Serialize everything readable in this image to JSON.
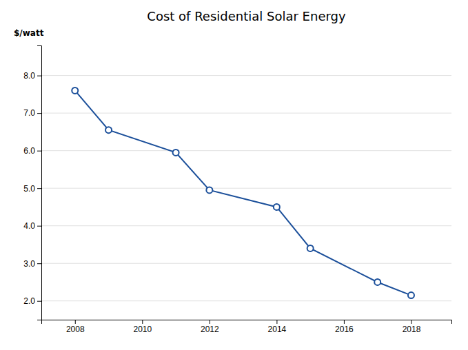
{
  "chart_data": {
    "type": "line",
    "title": "Cost of Residential Solar Energy",
    "ylabel": "$/watt",
    "x": [
      2008,
      2009,
      2011,
      2012,
      2014,
      2015,
      2017,
      2018
    ],
    "values": [
      7.6,
      6.55,
      5.95,
      4.95,
      4.5,
      3.4,
      2.5,
      2.15
    ],
    "color": "#1B4F9A",
    "marker": "circle",
    "xlim": [
      2007.0,
      2019.2
    ],
    "xticks": [
      2008,
      2010,
      2012,
      2014,
      2016,
      2018
    ],
    "ylim": [
      1.5,
      8.8
    ],
    "yticks": [
      {
        "value": 2.0,
        "label": "2.0"
      },
      {
        "value": 3.0,
        "label": "3.0"
      },
      {
        "value": 4.0,
        "label": "4.0"
      },
      {
        "value": 5.0,
        "label": "5.0"
      },
      {
        "value": 6.0,
        "label": "6.0"
      },
      {
        "value": 7.0,
        "label": "7.0"
      },
      {
        "value": 8.0,
        "label": "8.0"
      }
    ],
    "grid": true
  }
}
